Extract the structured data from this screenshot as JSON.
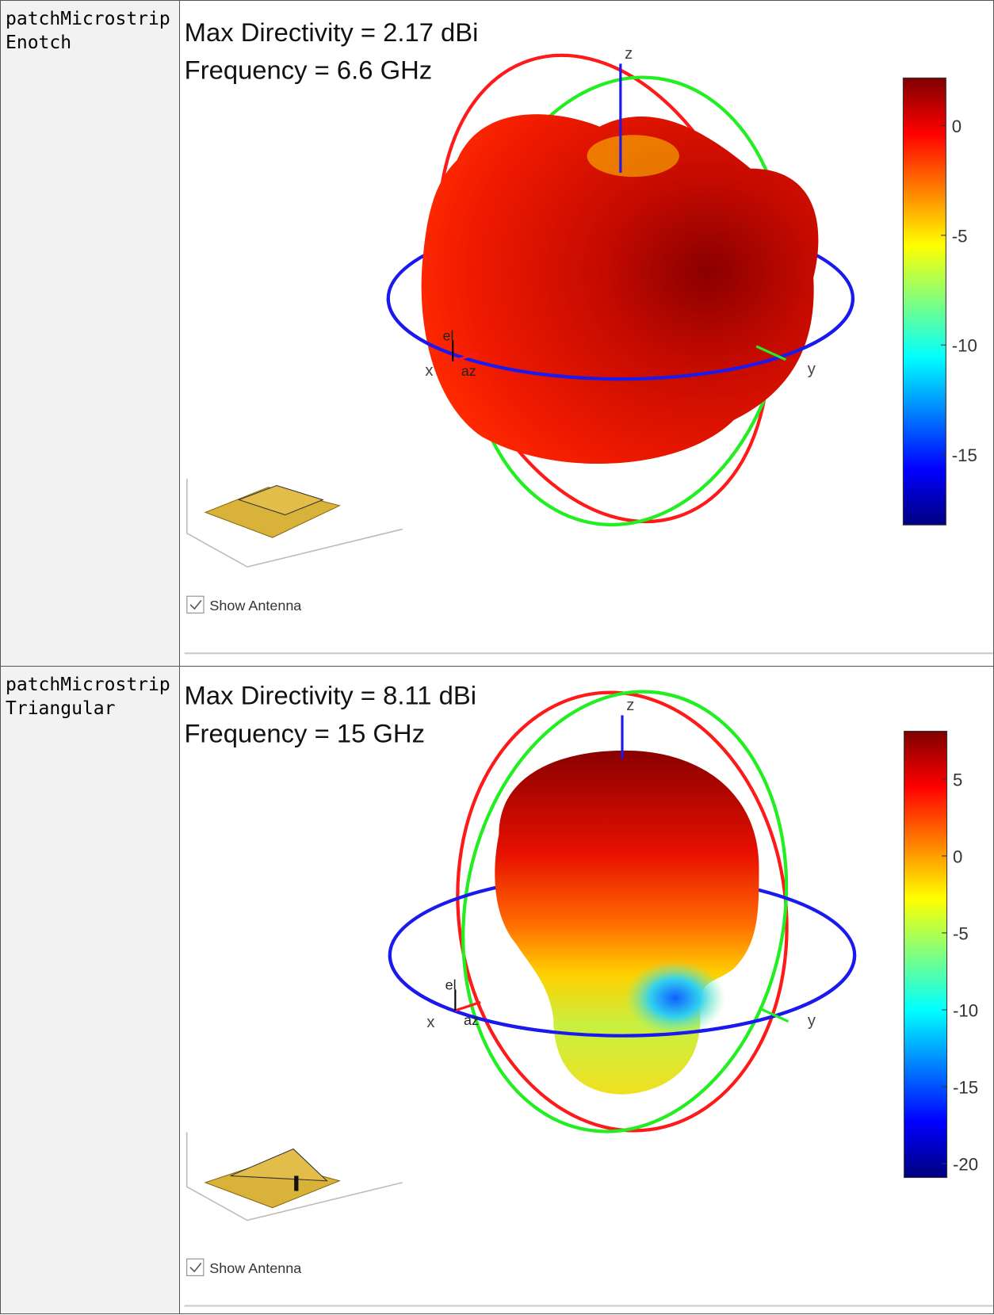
{
  "table": {
    "rows": [
      {
        "name": "patchMicrostripEnotch",
        "plot": {
          "title": [
            "Max Directivity = 2.17 dBi",
            "Frequency = 6.6 GHz"
          ],
          "axis_labels": {
            "x": "x",
            "y": "y",
            "z": "z",
            "el": "el",
            "az": "az"
          },
          "colorbar": {
            "lim": [
              -18.2,
              2.17
            ],
            "ticks": [
              0,
              -5,
              -10,
              -15
            ]
          },
          "checkbox": "Show Antenna"
        }
      },
      {
        "name": "patchMicrostripTriangular",
        "plot": {
          "title": [
            "Max Directivity = 8.11 dBi",
            "Frequency = 15 GHz"
          ],
          "axis_labels": {
            "x": "x",
            "y": "y",
            "z": "z",
            "el": "el",
            "az": "az"
          },
          "colorbar": {
            "lim": [
              -20.9,
              8.11
            ],
            "ticks": [
              5,
              0,
              -5,
              -10,
              -15,
              -20
            ]
          },
          "checkbox": "Show Antenna"
        }
      }
    ]
  }
}
